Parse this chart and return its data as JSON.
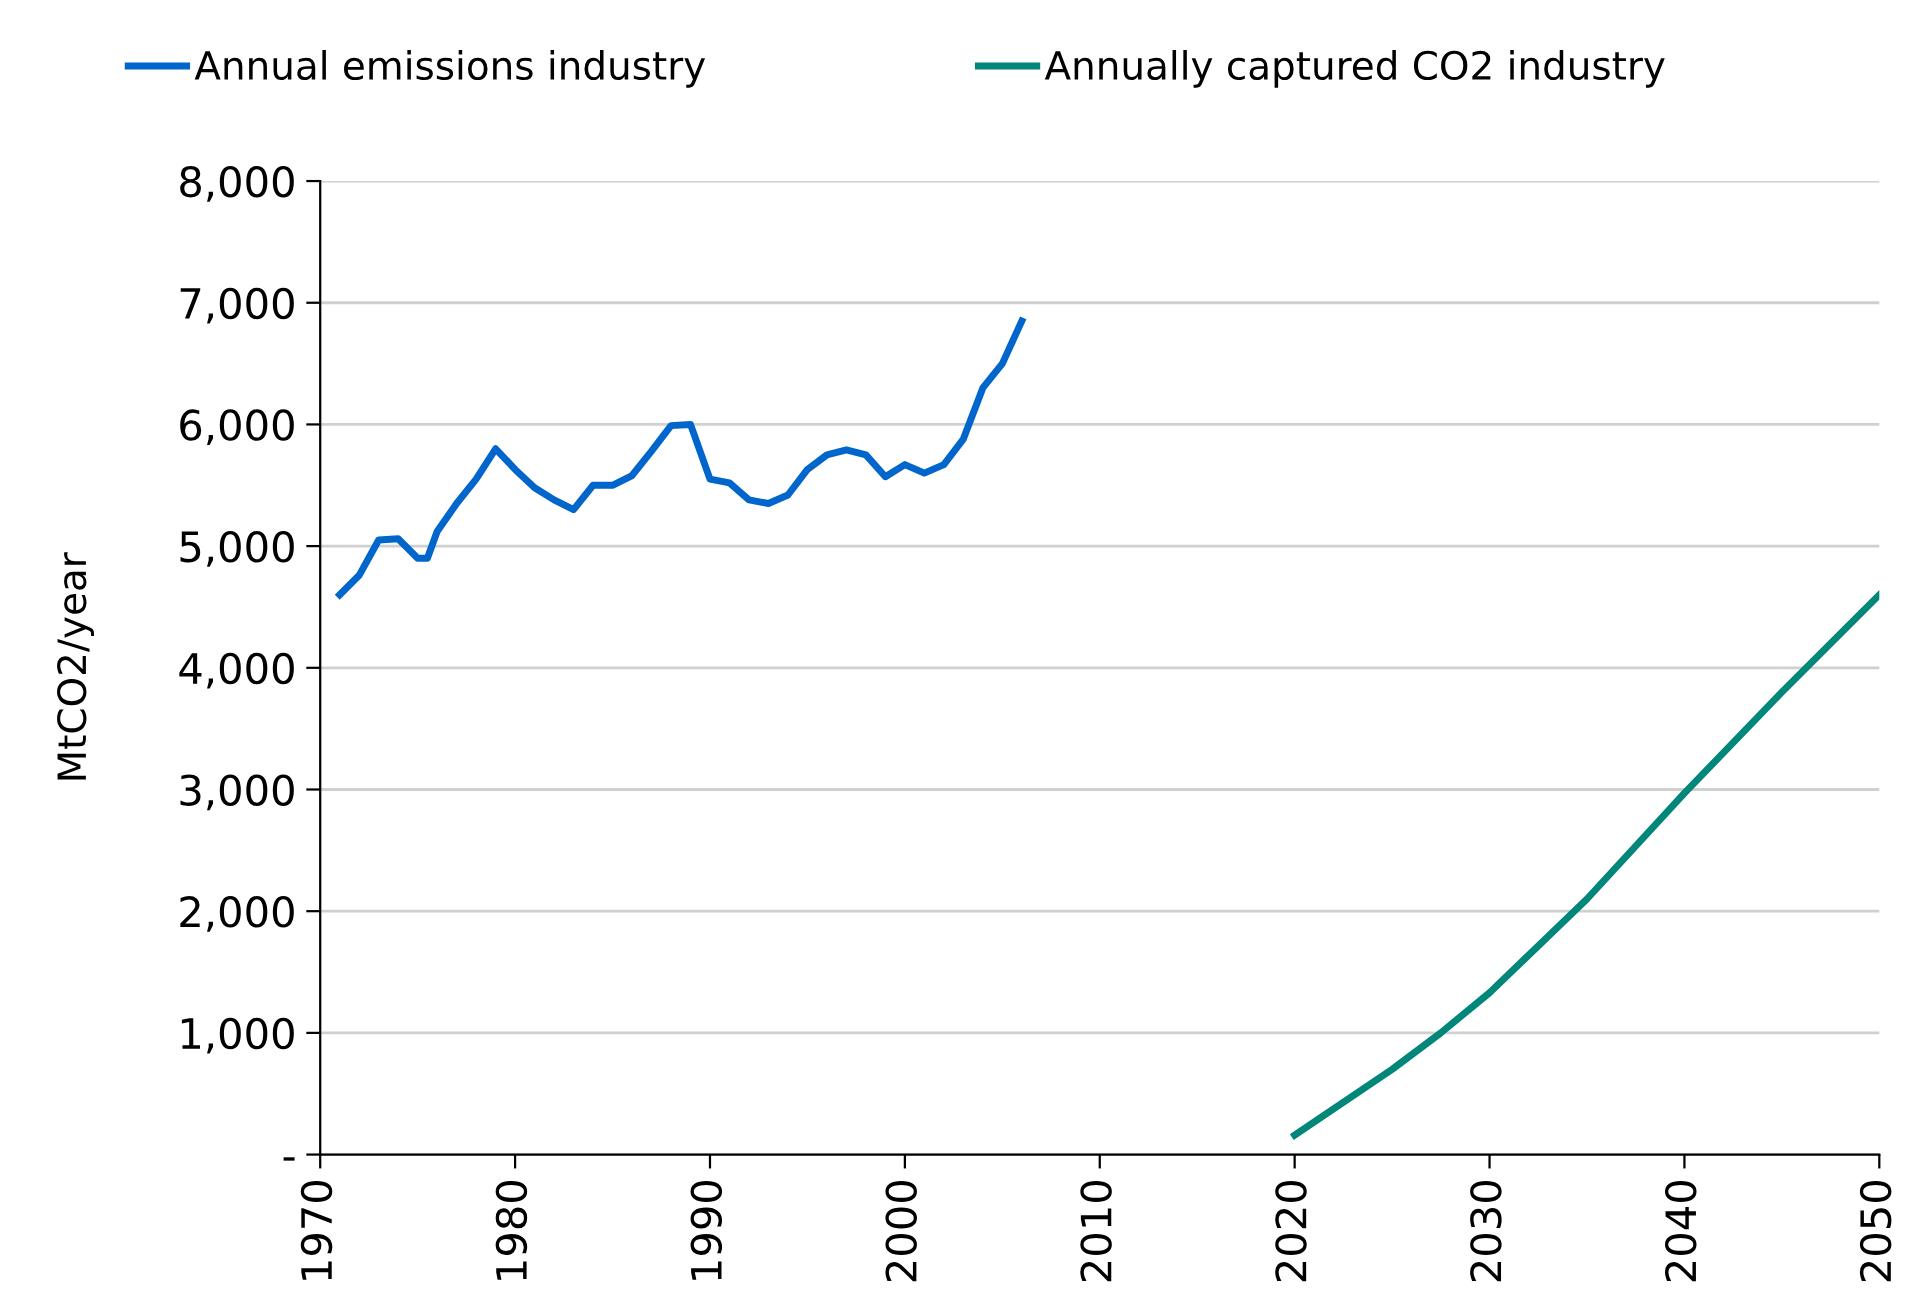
{
  "chart_data": {
    "type": "line",
    "ylabel": "MtCO2/year",
    "xlim": [
      1970,
      2050
    ],
    "xticks": [
      1970,
      1980,
      1990,
      2000,
      2010,
      2020,
      2030,
      2040,
      2050
    ],
    "ylim": [
      0,
      8000
    ],
    "yticks": [
      {
        "value": 0,
        "label": "-"
      },
      {
        "value": 1000,
        "label": "1,000"
      },
      {
        "value": 2000,
        "label": "2,000"
      },
      {
        "value": 3000,
        "label": "3,000"
      },
      {
        "value": 4000,
        "label": "4,000"
      },
      {
        "value": 5000,
        "label": "5,000"
      },
      {
        "value": 6000,
        "label": "6,000"
      },
      {
        "value": 7000,
        "label": "7,000"
      },
      {
        "value": 8000,
        "label": "8,000"
      }
    ],
    "grid": "y",
    "legend": "top",
    "marker": "none",
    "line_style": "solid",
    "series": [
      {
        "name": "Annual emissions industry",
        "color": "#0066cc",
        "x": [
          1971,
          1972,
          1973,
          1974,
          1975,
          1975.5,
          1976,
          1977,
          1978,
          1979,
          1980,
          1981,
          1982,
          1983,
          1984,
          1985,
          1986,
          1987,
          1988,
          1989,
          1990,
          1991,
          1992,
          1993,
          1994,
          1995,
          1996,
          1997,
          1998,
          1999,
          2000,
          2001,
          2002,
          2003,
          2004,
          2005,
          2006
        ],
        "values": [
          4600,
          4760,
          5050,
          5060,
          4900,
          4900,
          5120,
          5350,
          5550,
          5800,
          5630,
          5480,
          5380,
          5300,
          5500,
          5500,
          5580,
          5780,
          5990,
          6000,
          5550,
          5520,
          5380,
          5350,
          5420,
          5630,
          5750,
          5790,
          5750,
          5570,
          5670,
          5600,
          5670,
          5880,
          6300,
          6500,
          6850
        ]
      },
      {
        "name": "Annually captured CO2 industry",
        "color": "#00877a",
        "x": [
          2020,
          2025,
          2027.5,
          2030,
          2035,
          2040,
          2045,
          2050
        ],
        "values": [
          160,
          700,
          1000,
          1330,
          2100,
          2970,
          3800,
          4600
        ]
      }
    ]
  }
}
